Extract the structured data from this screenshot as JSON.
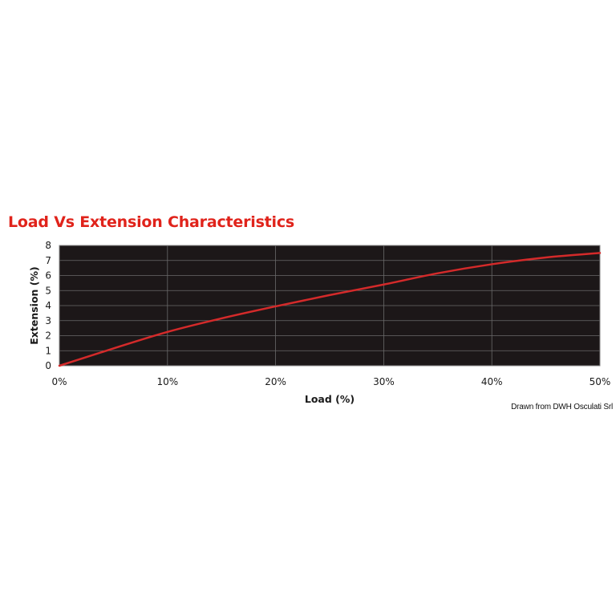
{
  "chart_data": {
    "type": "line",
    "title": "Load Vs Extension Characteristics",
    "xlabel": "Load (%)",
    "ylabel": "Extension (%)",
    "x_ticks": [
      "0%",
      "10%",
      "20%",
      "30%",
      "40%",
      "50%"
    ],
    "y_ticks": [
      "0",
      "1",
      "2",
      "3",
      "4",
      "5",
      "6",
      "7",
      "8"
    ],
    "xlim": [
      0,
      50
    ],
    "ylim": [
      0,
      8
    ],
    "grid": true,
    "plot_background": "#1c1718",
    "grid_color": "#6a6a6a",
    "line_color": "#d42a2a",
    "series": [
      {
        "x": [
          0,
          5,
          10,
          15,
          20,
          25,
          30,
          35,
          40,
          45,
          50
        ],
        "y": [
          0,
          1.15,
          2.25,
          3.15,
          3.95,
          4.7,
          5.4,
          6.15,
          6.75,
          7.2,
          7.5
        ]
      }
    ]
  },
  "credit": "Drawn from DWH Osculati Srl"
}
